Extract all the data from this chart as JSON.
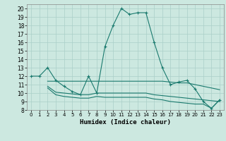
{
  "xlabel": "Humidex (Indice chaleur)",
  "background_color": "#cce8e0",
  "grid_color": "#aacfc8",
  "line_color": "#1a7a6e",
  "xlim": [
    -0.5,
    23.5
  ],
  "ylim": [
    8,
    20.5
  ],
  "yticks": [
    8,
    9,
    10,
    11,
    12,
    13,
    14,
    15,
    16,
    17,
    18,
    19,
    20
  ],
  "xticks": [
    0,
    1,
    2,
    3,
    4,
    5,
    6,
    7,
    8,
    9,
    10,
    11,
    12,
    13,
    14,
    15,
    16,
    17,
    18,
    19,
    20,
    21,
    22,
    23
  ],
  "lines": [
    {
      "x": [
        0,
        1,
        2,
        3,
        4,
        5,
        6,
        7,
        8,
        9,
        10,
        11,
        12,
        13,
        14,
        15,
        16,
        17,
        18,
        19,
        20,
        21,
        22,
        23
      ],
      "y": [
        12,
        12,
        13,
        11.5,
        10.8,
        10.2,
        9.8,
        12,
        10,
        15.5,
        18,
        20,
        19.3,
        19.5,
        19.5,
        16,
        13,
        11,
        11.3,
        11.5,
        10.5,
        9,
        8.2,
        9.2
      ],
      "marker": true
    },
    {
      "x": [
        2,
        3,
        4,
        5,
        6,
        7,
        8,
        9,
        10,
        11,
        12,
        13,
        14,
        15,
        16,
        17,
        18,
        19,
        20,
        21,
        22,
        23
      ],
      "y": [
        11.4,
        11.4,
        11.4,
        11.4,
        11.4,
        11.4,
        11.4,
        11.4,
        11.4,
        11.4,
        11.4,
        11.4,
        11.4,
        11.4,
        11.4,
        11.3,
        11.2,
        11.2,
        11.0,
        10.8,
        10.6,
        10.4
      ],
      "marker": false
    },
    {
      "x": [
        2,
        3,
        4,
        5,
        6,
        7,
        8,
        9,
        10,
        11,
        12,
        13,
        14,
        15,
        16,
        17,
        18,
        19,
        20,
        21,
        22,
        23
      ],
      "y": [
        10.8,
        10.1,
        10.0,
        9.9,
        9.8,
        9.8,
        10.0,
        10.0,
        10.0,
        10.0,
        10.0,
        10.0,
        10.0,
        9.8,
        9.7,
        9.6,
        9.5,
        9.4,
        9.3,
        9.2,
        9.1,
        9.0
      ],
      "marker": false
    },
    {
      "x": [
        2,
        3,
        4,
        5,
        6,
        7,
        8,
        9,
        10,
        11,
        12,
        13,
        14,
        15,
        16,
        17,
        18,
        19,
        20,
        21,
        22,
        23
      ],
      "y": [
        10.6,
        9.8,
        9.6,
        9.5,
        9.4,
        9.4,
        9.6,
        9.5,
        9.5,
        9.5,
        9.5,
        9.5,
        9.5,
        9.3,
        9.2,
        9.0,
        8.9,
        8.8,
        8.7,
        8.7,
        8.2,
        9.2
      ],
      "marker": false
    }
  ]
}
